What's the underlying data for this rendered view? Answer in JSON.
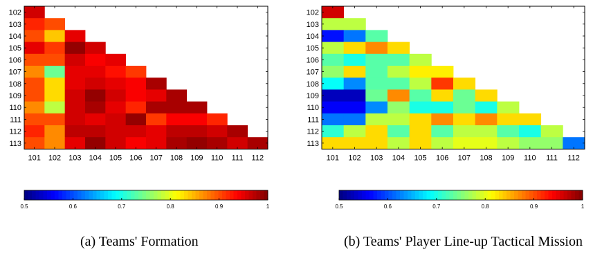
{
  "captions": {
    "a": "(a) Teams' Formation",
    "b": "(b) Teams' Player Line-up Tactical Mission"
  },
  "colorbar": {
    "ticks": [
      0.5,
      0.6,
      0.7,
      0.8,
      0.9,
      1
    ],
    "tick_labels": [
      "0.5",
      "0.6",
      "0.7",
      "0.8",
      "0.9",
      "1"
    ],
    "range": [
      0.5,
      1.0
    ],
    "colormap": "jet"
  },
  "chart_data": [
    {
      "type": "heatmap",
      "title": "",
      "xlabel": "",
      "ylabel": "",
      "x_categories": [
        "101",
        "102",
        "103",
        "104",
        "105",
        "106",
        "107",
        "108",
        "109",
        "110",
        "111",
        "112"
      ],
      "y_categories": [
        "102",
        "103",
        "104",
        "105",
        "106",
        "107",
        "108",
        "109",
        "110",
        "111",
        "112",
        "113"
      ],
      "value_range": [
        0.5,
        1.0
      ],
      "values": [
        [
          0.96
        ],
        [
          0.92,
          0.9
        ],
        [
          0.9,
          0.84,
          0.95
        ],
        [
          0.95,
          0.91,
          0.99,
          0.96
        ],
        [
          0.9,
          0.9,
          0.96,
          0.94,
          0.95
        ],
        [
          0.87,
          0.74,
          0.95,
          0.95,
          0.93,
          0.91
        ],
        [
          0.9,
          0.83,
          0.95,
          0.96,
          0.95,
          0.94,
          0.98
        ],
        [
          0.9,
          0.83,
          0.96,
          0.99,
          0.96,
          0.94,
          0.95,
          0.98
        ],
        [
          0.87,
          0.78,
          0.96,
          0.98,
          0.95,
          0.92,
          0.98,
          0.98,
          0.98
        ],
        [
          0.9,
          0.9,
          0.96,
          0.95,
          0.96,
          0.99,
          0.91,
          0.94,
          0.94,
          0.92
        ],
        [
          0.92,
          0.87,
          0.97,
          0.97,
          0.96,
          0.96,
          0.95,
          0.97,
          0.97,
          0.96,
          0.98
        ],
        [
          0.9,
          0.87,
          0.95,
          0.99,
          0.96,
          0.94,
          0.95,
          0.98,
          0.99,
          0.98,
          0.96,
          0.98
        ]
      ]
    },
    {
      "type": "heatmap",
      "title": "",
      "xlabel": "",
      "ylabel": "",
      "x_categories": [
        "101",
        "102",
        "103",
        "104",
        "105",
        "106",
        "107",
        "108",
        "109",
        "110",
        "111",
        "112"
      ],
      "y_categories": [
        "102",
        "103",
        "104",
        "105",
        "106",
        "107",
        "108",
        "109",
        "110",
        "111",
        "112",
        "113"
      ],
      "value_range": [
        0.5,
        1.0
      ],
      "values": [
        [
          0.96
        ],
        [
          0.78,
          0.78
        ],
        [
          0.57,
          0.62,
          0.73
        ],
        [
          0.78,
          0.83,
          0.87,
          0.83
        ],
        [
          0.73,
          0.7,
          0.73,
          0.73,
          0.78
        ],
        [
          0.76,
          0.83,
          0.73,
          0.78,
          0.82,
          0.82
        ],
        [
          0.69,
          0.63,
          0.73,
          0.73,
          0.78,
          0.91,
          0.83
        ],
        [
          0.53,
          0.53,
          0.74,
          0.87,
          0.73,
          0.83,
          0.74,
          0.83
        ],
        [
          0.56,
          0.56,
          0.63,
          0.76,
          0.7,
          0.7,
          0.74,
          0.7,
          0.78
        ],
        [
          0.62,
          0.62,
          0.78,
          0.78,
          0.83,
          0.87,
          0.83,
          0.87,
          0.83,
          0.83
        ],
        [
          0.71,
          0.78,
          0.83,
          0.73,
          0.83,
          0.73,
          0.78,
          0.78,
          0.73,
          0.7,
          0.78
        ],
        [
          0.83,
          0.83,
          0.83,
          0.78,
          0.83,
          0.78,
          0.8,
          0.8,
          0.78,
          0.76,
          0.76,
          0.62
        ]
      ]
    }
  ]
}
